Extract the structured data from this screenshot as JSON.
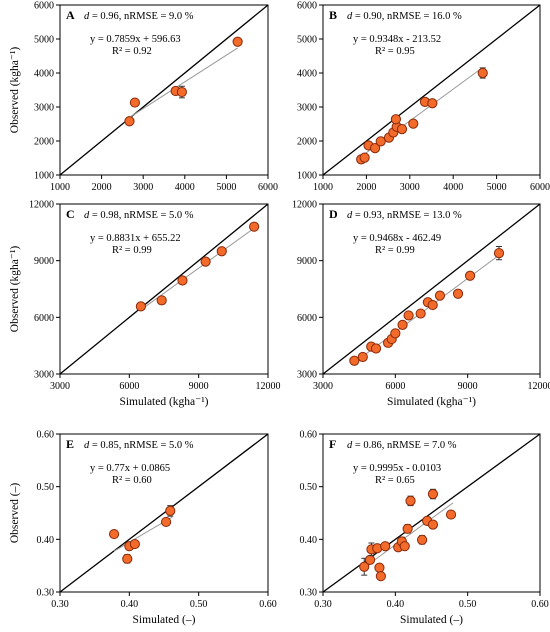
{
  "chart_data": [
    {
      "type": "scatter",
      "letter": "A",
      "xlim": [
        1000,
        6000
      ],
      "ylim": [
        1000,
        6000
      ],
      "xticks": [
        "1000",
        "2000",
        "3000",
        "4000",
        "5000",
        "6000"
      ],
      "yticks": [
        "1000",
        "2000",
        "3000",
        "4000",
        "5000",
        "6000"
      ],
      "ylabel": "Observed (kgha⁻¹)",
      "xlabel": "",
      "stat_prefix": "d",
      "stat_text": " = 0.96, nRMSE = 9.0 %",
      "equation": "y = 0.7859x + 596.63",
      "r2": "R² = 0.92",
      "fit": {
        "slope": 0.7859,
        "intercept": 596.63,
        "x_range": [
          2650,
          5270
        ]
      },
      "points": [
        {
          "x": 2670,
          "y": 2580,
          "err": 0
        },
        {
          "x": 2800,
          "y": 3130,
          "err": 0
        },
        {
          "x": 3780,
          "y": 3470,
          "err": 90
        },
        {
          "x": 3930,
          "y": 3440,
          "err": 170
        },
        {
          "x": 5270,
          "y": 4920,
          "err": 0
        }
      ]
    },
    {
      "type": "scatter",
      "letter": "B",
      "xlim": [
        1000,
        6000
      ],
      "ylim": [
        1000,
        6000
      ],
      "xticks": [
        "1000",
        "2000",
        "3000",
        "4000",
        "5000",
        "6000"
      ],
      "yticks": [
        "1000",
        "2000",
        "3000",
        "4000",
        "5000",
        "6000"
      ],
      "ylabel": "",
      "xlabel": "",
      "stat_prefix": "d",
      "stat_text": " = 0.90, nRMSE = 16.0 %",
      "equation": "y = 0.9348x - 213.52",
      "r2": "R² = 0.95",
      "fit": {
        "slope": 0.9348,
        "intercept": -213.52,
        "x_range": [
          1850,
          4680
        ]
      },
      "points": [
        {
          "x": 1880,
          "y": 1460,
          "err": 0
        },
        {
          "x": 1960,
          "y": 1510,
          "err": 0
        },
        {
          "x": 2050,
          "y": 1870,
          "err": 0
        },
        {
          "x": 2200,
          "y": 1790,
          "err": 0
        },
        {
          "x": 2330,
          "y": 1990,
          "err": 0
        },
        {
          "x": 2520,
          "y": 2100,
          "err": 0
        },
        {
          "x": 2620,
          "y": 2250,
          "err": 0
        },
        {
          "x": 2700,
          "y": 2420,
          "err": 0
        },
        {
          "x": 2680,
          "y": 2640,
          "err": 0
        },
        {
          "x": 2820,
          "y": 2350,
          "err": 0
        },
        {
          "x": 3080,
          "y": 2510,
          "err": 0
        },
        {
          "x": 3350,
          "y": 3150,
          "err": 0
        },
        {
          "x": 3520,
          "y": 3110,
          "err": 0
        },
        {
          "x": 4680,
          "y": 4000,
          "err": 150
        }
      ]
    },
    {
      "type": "scatter",
      "letter": "C",
      "xlim": [
        3000,
        12000
      ],
      "ylim": [
        3000,
        12000
      ],
      "xticks": [
        "3000",
        "6000",
        "9000",
        "12000"
      ],
      "yticks": [
        "3000",
        "6000",
        "9000",
        "12000"
      ],
      "ylabel": "Observed (kgha⁻¹)",
      "xlabel": "Simulated (kgha⁻¹)",
      "stat_prefix": "d",
      "stat_text": " = 0.98, nRMSE = 5.0 %",
      "equation": "y = 0.8831x + 655.22",
      "r2": "R² = 0.99",
      "fit": {
        "slope": 0.8831,
        "intercept": 655.22,
        "x_range": [
          6450,
          11500
        ]
      },
      "points": [
        {
          "x": 6500,
          "y": 6580,
          "err": 0
        },
        {
          "x": 7400,
          "y": 6900,
          "err": 0
        },
        {
          "x": 8300,
          "y": 7950,
          "err": 0
        },
        {
          "x": 9300,
          "y": 8950,
          "err": 0
        },
        {
          "x": 10000,
          "y": 9500,
          "err": 0
        },
        {
          "x": 11400,
          "y": 10800,
          "err": 0
        }
      ]
    },
    {
      "type": "scatter",
      "letter": "D",
      "xlim": [
        3000,
        12000
      ],
      "ylim": [
        3000,
        12000
      ],
      "xticks": [
        "3000",
        "6000",
        "9000",
        "12000"
      ],
      "yticks": [
        "3000",
        "6000",
        "9000",
        "12000"
      ],
      "ylabel": "",
      "xlabel": "Simulated (kgha⁻¹)",
      "stat_prefix": "d",
      "stat_text": " = 0.93, nRMSE = 13.0 %",
      "equation": "y = 0.9468x - 462.49",
      "r2": "R² = 0.99",
      "fit": {
        "slope": 0.9468,
        "intercept": -462.49,
        "x_range": [
          4200,
          10400
        ]
      },
      "points": [
        {
          "x": 4300,
          "y": 3700,
          "err": 0
        },
        {
          "x": 4650,
          "y": 3900,
          "err": 0
        },
        {
          "x": 5000,
          "y": 4450,
          "err": 0
        },
        {
          "x": 5200,
          "y": 4350,
          "err": 0
        },
        {
          "x": 5700,
          "y": 4650,
          "err": 0
        },
        {
          "x": 5850,
          "y": 4850,
          "err": 0
        },
        {
          "x": 6000,
          "y": 5150,
          "err": 0
        },
        {
          "x": 6300,
          "y": 5600,
          "err": 0
        },
        {
          "x": 6550,
          "y": 6100,
          "err": 0
        },
        {
          "x": 7050,
          "y": 6200,
          "err": 0
        },
        {
          "x": 7350,
          "y": 6800,
          "err": 0
        },
        {
          "x": 7550,
          "y": 6650,
          "err": 0
        },
        {
          "x": 7850,
          "y": 7150,
          "err": 0
        },
        {
          "x": 8600,
          "y": 7250,
          "err": 0
        },
        {
          "x": 9100,
          "y": 8200,
          "err": 0
        },
        {
          "x": 10300,
          "y": 9400,
          "err": 350
        }
      ]
    },
    {
      "type": "scatter",
      "letter": "E",
      "xlim": [
        0.3,
        0.6
      ],
      "ylim": [
        0.3,
        0.6
      ],
      "xticks": [
        "0.30",
        "0.40",
        "0.50",
        "0.60"
      ],
      "yticks": [
        "0.30",
        "0.40",
        "0.50",
        "0.60"
      ],
      "ylabel": "Observed (–)",
      "xlabel": "Simulated (–)",
      "stat_prefix": "d",
      "stat_text": " = 0.85, nRMSE = 5.0 %",
      "equation": "y = 0.77x + 0.0865",
      "r2": "R² = 0.60",
      "fit": {
        "slope": 0.77,
        "intercept": 0.0865,
        "x_range": [
          0.378,
          0.462
        ]
      },
      "points": [
        {
          "x": 0.378,
          "y": 0.41,
          "err": 0
        },
        {
          "x": 0.397,
          "y": 0.363,
          "err": 0.008
        },
        {
          "x": 0.4,
          "y": 0.387,
          "err": 0.006
        },
        {
          "x": 0.408,
          "y": 0.391,
          "err": 0
        },
        {
          "x": 0.453,
          "y": 0.433,
          "err": 0
        },
        {
          "x": 0.459,
          "y": 0.454,
          "err": 0.01
        }
      ]
    },
    {
      "type": "scatter",
      "letter": "F",
      "xlim": [
        0.3,
        0.6
      ],
      "ylim": [
        0.3,
        0.6
      ],
      "xticks": [
        "0.30",
        "0.40",
        "0.50",
        "0.60"
      ],
      "yticks": [
        "0.30",
        "0.40",
        "0.50",
        "0.60"
      ],
      "ylabel": "",
      "xlabel": "Simulated (–)",
      "stat_prefix": "d",
      "stat_text": " = 0.86, nRMSE = 7.0 %",
      "equation": "y = 0.9995x - 0.0103",
      "r2": "R² = 0.65",
      "fit": {
        "slope": 0.9995,
        "intercept": -0.0103,
        "x_range": [
          0.355,
          0.48
        ]
      },
      "points": [
        {
          "x": 0.357,
          "y": 0.348,
          "err": 0.016
        },
        {
          "x": 0.365,
          "y": 0.361,
          "err": 0
        },
        {
          "x": 0.367,
          "y": 0.381,
          "err": 0.012
        },
        {
          "x": 0.375,
          "y": 0.383,
          "err": 0
        },
        {
          "x": 0.378,
          "y": 0.346,
          "err": 0
        },
        {
          "x": 0.38,
          "y": 0.33,
          "err": 0
        },
        {
          "x": 0.386,
          "y": 0.387,
          "err": 0
        },
        {
          "x": 0.404,
          "y": 0.385,
          "err": 0
        },
        {
          "x": 0.409,
          "y": 0.396,
          "err": 0.008
        },
        {
          "x": 0.413,
          "y": 0.387,
          "err": 0
        },
        {
          "x": 0.417,
          "y": 0.42,
          "err": 0.008
        },
        {
          "x": 0.421,
          "y": 0.473,
          "err": 0.009
        },
        {
          "x": 0.437,
          "y": 0.399,
          "err": 0.008
        },
        {
          "x": 0.444,
          "y": 0.435,
          "err": 0
        },
        {
          "x": 0.452,
          "y": 0.428,
          "err": 0
        },
        {
          "x": 0.452,
          "y": 0.486,
          "err": 0.009
        },
        {
          "x": 0.477,
          "y": 0.447,
          "err": 0
        }
      ]
    }
  ]
}
